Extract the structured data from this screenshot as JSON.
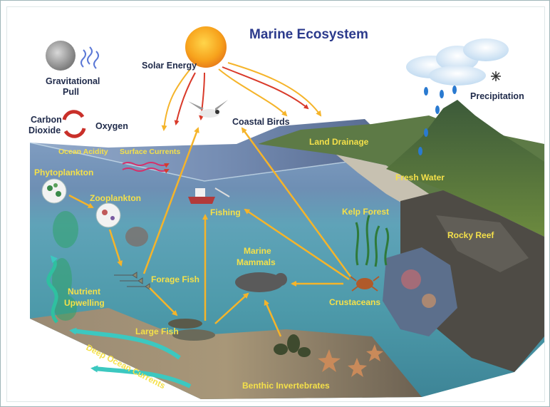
{
  "title": "Marine Ecosystem",
  "labels": {
    "solar_energy": "Solar Energy",
    "gravitational_1": "Gravitational",
    "gravitational_2": "Pull",
    "carbon_1": "Carbon",
    "carbon_2": "Dioxide",
    "oxygen": "Oxygen",
    "coastal_birds": "Coastal Birds",
    "precipitation": "Precipitation",
    "land_drainage": "Land Drainage",
    "ocean_acidity": "Ocean Acidity",
    "surface_currents": "Surface Currents",
    "phytoplankton": "Phytoplankton",
    "zooplankton": "Zooplankton",
    "fresh_water": "Fresh Water",
    "fishing": "Fishing",
    "kelp_forest": "Kelp Forest",
    "rocky_reef": "Rocky Reef",
    "marine_mammals_1": "Marine",
    "marine_mammals_2": "Mammals",
    "forage_fish": "Forage Fish",
    "nutrient_1": "Nutrient",
    "nutrient_2": "Upwelling",
    "crustaceans": "Crustaceans",
    "large_fish": "Large Fish",
    "deep_ocean_currents": "Deep Ocean Currents",
    "benthic_invertebrates": "Benthic Invertebrates"
  },
  "colors": {
    "arrow": "#f5b42a",
    "title": "#2b3a8c",
    "label_dark": "#1f2a4a",
    "label_yellow": "#f4e04a",
    "water_top": "#5d7fa6",
    "water_deep": "#2f6e86",
    "current": "#3cc8c0"
  },
  "icons": [
    "sun-icon",
    "moon-icon",
    "cloud-icon",
    "snowflake-icon",
    "raindrop-icon",
    "cycle-arrows-icon",
    "bird-icon",
    "boat-icon",
    "fish-icon",
    "seal-icon",
    "crab-icon",
    "starfish-icon",
    "mussel-icon",
    "kelp-icon",
    "mountain-icon"
  ]
}
